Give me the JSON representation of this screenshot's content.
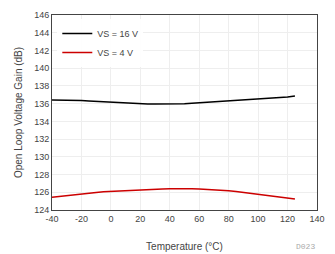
{
  "chart_data": {
    "type": "line",
    "xlabel": "Temperature (°C)",
    "ylabel": "Open Loop Voltage Gain (dB)",
    "x": [
      -40,
      -35,
      -30,
      -25,
      -20,
      -15,
      -10,
      -5,
      0,
      5,
      10,
      15,
      20,
      25,
      30,
      35,
      40,
      45,
      50,
      55,
      60,
      65,
      70,
      75,
      80,
      85,
      90,
      95,
      100,
      105,
      110,
      115,
      120,
      125
    ],
    "series": [
      {
        "name": "VS = 16 V",
        "color": "#000000",
        "values": [
          136.4,
          136.4,
          136.4,
          136.4,
          136.35,
          136.3,
          136.25,
          136.2,
          136.15,
          136.1,
          136.05,
          136.0,
          136.0,
          135.95,
          135.95,
          135.95,
          135.95,
          136.0,
          136.0,
          136.05,
          136.1,
          136.15,
          136.2,
          136.25,
          136.3,
          136.35,
          136.4,
          136.45,
          136.5,
          136.55,
          136.6,
          136.65,
          136.75,
          136.85
        ]
      },
      {
        "name": "VS = 4 V",
        "color": "#cc0000",
        "values": [
          125.45,
          125.55,
          125.65,
          125.75,
          125.85,
          125.92,
          125.98,
          126.05,
          126.1,
          126.15,
          126.2,
          126.25,
          126.28,
          126.32,
          126.35,
          126.38,
          126.4,
          126.42,
          126.42,
          126.4,
          126.38,
          126.35,
          126.3,
          126.25,
          126.18,
          126.1,
          126.0,
          125.9,
          125.8,
          125.7,
          125.6,
          125.5,
          125.35,
          125.25
        ]
      }
    ],
    "xlim": [
      -40,
      140
    ],
    "ylim": [
      124,
      146
    ],
    "xticks": [
      -40,
      -20,
      0,
      20,
      40,
      60,
      80,
      100,
      120,
      140
    ],
    "yticks": [
      124,
      126,
      128,
      130,
      132,
      134,
      136,
      138,
      140,
      142,
      144,
      146
    ],
    "grid": true,
    "legend": "upper left",
    "annotations": [
      "D023"
    ]
  }
}
